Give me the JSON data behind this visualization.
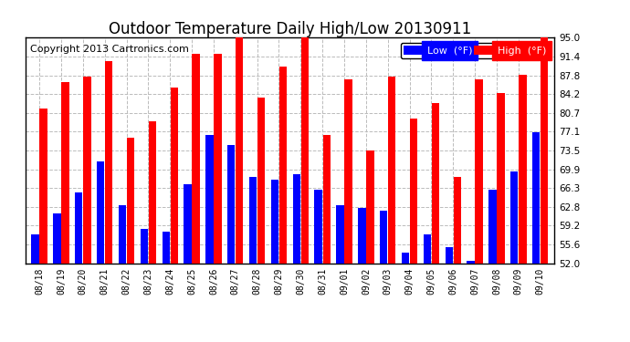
{
  "title": "Outdoor Temperature Daily High/Low 20130911",
  "copyright": "Copyright 2013 Cartronics.com",
  "legend_low": "Low  (°F)",
  "legend_high": "High  (°F)",
  "dates": [
    "08/18",
    "08/19",
    "08/20",
    "08/21",
    "08/22",
    "08/23",
    "08/24",
    "08/25",
    "08/26",
    "08/27",
    "08/28",
    "08/29",
    "08/30",
    "08/31",
    "09/01",
    "09/02",
    "09/03",
    "09/04",
    "09/05",
    "09/06",
    "09/07",
    "09/08",
    "09/09",
    "09/10"
  ],
  "highs": [
    81.5,
    86.5,
    87.5,
    90.5,
    76.0,
    79.0,
    85.5,
    92.0,
    92.0,
    95.0,
    83.5,
    89.5,
    95.0,
    76.5,
    87.0,
    73.5,
    87.5,
    79.5,
    82.5,
    68.5,
    87.0,
    84.5,
    88.0,
    95.0
  ],
  "lows": [
    57.5,
    61.5,
    65.5,
    71.5,
    63.0,
    58.5,
    58.0,
    67.0,
    76.5,
    74.5,
    68.5,
    68.0,
    69.0,
    66.0,
    63.0,
    62.5,
    62.0,
    54.0,
    57.5,
    55.0,
    52.5,
    66.0,
    69.5,
    77.0
  ],
  "ymin": 52.0,
  "ymax": 95.0,
  "yticks": [
    52.0,
    55.6,
    59.2,
    62.8,
    66.3,
    69.9,
    73.5,
    77.1,
    80.7,
    84.2,
    87.8,
    91.4,
    95.0
  ],
  "bar_color_high": "#ff0000",
  "bar_color_low": "#0000ff",
  "bg_color": "#ffffff",
  "grid_color": "#bbbbbb",
  "title_color": "#000000",
  "title_fontsize": 12,
  "copyright_fontsize": 8
}
